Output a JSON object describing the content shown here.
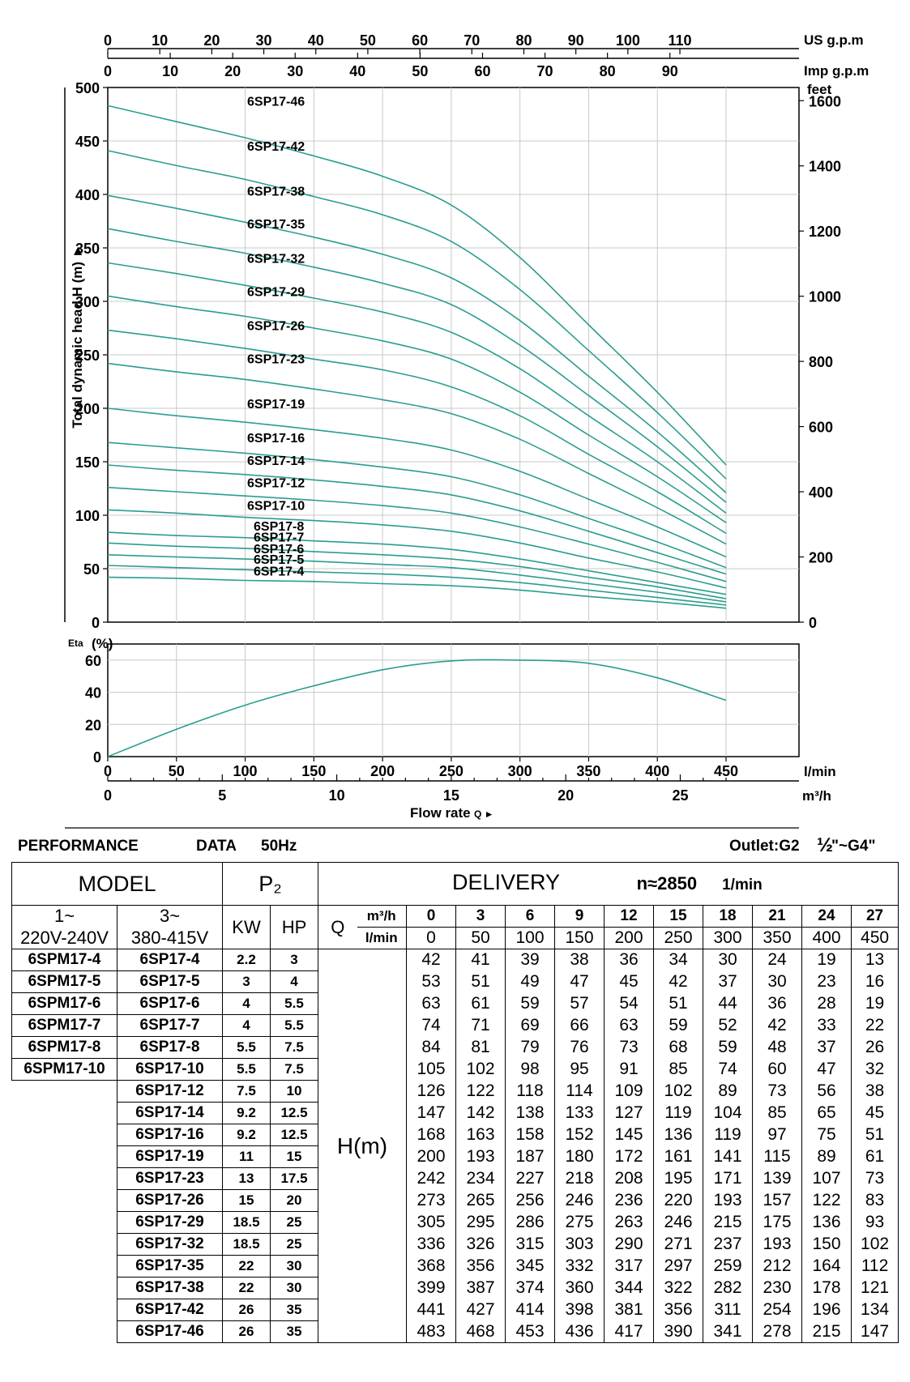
{
  "chart_data": [
    {
      "type": "line",
      "title": "",
      "ylabel": "Total dynamic head H (m)",
      "ylim": [
        0,
        500
      ],
      "yticks": [
        0,
        50,
        100,
        150,
        200,
        250,
        300,
        350,
        400,
        450,
        500
      ],
      "right_axis": {
        "label": "feet",
        "ticks": [
          0,
          200,
          400,
          600,
          800,
          1000,
          1200,
          1400,
          1600
        ]
      },
      "top_axis_us": {
        "label": "US g.p.m",
        "ticks": [
          0,
          10,
          20,
          30,
          40,
          50,
          60,
          70,
          80,
          90,
          100,
          110
        ]
      },
      "top_axis_imp": {
        "label": "Imp g.p.m",
        "ticks": [
          0,
          10,
          20,
          30,
          40,
          50,
          60,
          70,
          80,
          90
        ]
      },
      "x_lmin": [
        0,
        50,
        100,
        150,
        200,
        250,
        300,
        350,
        400,
        450
      ],
      "series": [
        {
          "name": "6SP17-46",
          "values": [
            483,
            468,
            453,
            436,
            417,
            390,
            341,
            278,
            215,
            147
          ]
        },
        {
          "name": "6SP17-42",
          "values": [
            441,
            427,
            414,
            398,
            381,
            356,
            311,
            254,
            196,
            134
          ]
        },
        {
          "name": "6SP17-38",
          "values": [
            399,
            387,
            374,
            360,
            344,
            322,
            282,
            230,
            178,
            121
          ]
        },
        {
          "name": "6SP17-35",
          "values": [
            368,
            356,
            345,
            332,
            317,
            297,
            259,
            212,
            164,
            112
          ]
        },
        {
          "name": "6SP17-32",
          "values": [
            336,
            326,
            315,
            303,
            290,
            271,
            237,
            193,
            150,
            102
          ]
        },
        {
          "name": "6SP17-29",
          "values": [
            305,
            295,
            286,
            275,
            263,
            246,
            215,
            175,
            136,
            93
          ]
        },
        {
          "name": "6SP17-26",
          "values": [
            273,
            265,
            256,
            246,
            236,
            220,
            193,
            157,
            122,
            83
          ]
        },
        {
          "name": "6SP17-23",
          "values": [
            242,
            234,
            227,
            218,
            208,
            195,
            171,
            139,
            107,
            73
          ]
        },
        {
          "name": "6SP17-19",
          "values": [
            200,
            193,
            187,
            180,
            172,
            161,
            141,
            115,
            89,
            61
          ]
        },
        {
          "name": "6SP17-16",
          "values": [
            168,
            163,
            158,
            152,
            145,
            136,
            119,
            97,
            75,
            51
          ]
        },
        {
          "name": "6SP17-14",
          "values": [
            147,
            142,
            138,
            133,
            127,
            119,
            104,
            85,
            65,
            45
          ]
        },
        {
          "name": "6SP17-12",
          "values": [
            126,
            122,
            118,
            114,
            109,
            102,
            89,
            73,
            56,
            38
          ]
        },
        {
          "name": "6SP17-10",
          "values": [
            105,
            102,
            98,
            95,
            91,
            85,
            74,
            60,
            47,
            32
          ]
        },
        {
          "name": "6SP17-8",
          "values": [
            84,
            81,
            79,
            76,
            73,
            68,
            59,
            48,
            37,
            26
          ]
        },
        {
          "name": "6SP17-7",
          "values": [
            74,
            71,
            69,
            66,
            63,
            59,
            52,
            42,
            33,
            22
          ]
        },
        {
          "name": "6SP17-6",
          "values": [
            63,
            61,
            59,
            57,
            54,
            51,
            44,
            36,
            28,
            19
          ]
        },
        {
          "name": "6SP17-5",
          "values": [
            53,
            51,
            49,
            47,
            45,
            42,
            37,
            30,
            23,
            16
          ]
        },
        {
          "name": "6SP17-4",
          "values": [
            42,
            41,
            39,
            38,
            36,
            34,
            30,
            24,
            19,
            13
          ]
        }
      ],
      "grid": true,
      "line_color": "#2a9d8f"
    },
    {
      "type": "line",
      "ylabel": "Eta (%)",
      "ylim": [
        0,
        70
      ],
      "yticks": [
        0,
        20,
        40,
        60
      ],
      "x_lmin": [
        0,
        50,
        100,
        150,
        200,
        250,
        300,
        350,
        400,
        450
      ],
      "xlabel_lmin": "l/min",
      "x_m3h": [
        0,
        5,
        10,
        15,
        20,
        25
      ],
      "xlabel_m3h": "m³/h",
      "xlabel": "Flow rate Q ►",
      "series": [
        {
          "name": "",
          "values": [
            0,
            17,
            32,
            44,
            54,
            59.5,
            60,
            58,
            49,
            35
          ]
        }
      ],
      "grid": true
    }
  ],
  "labels": {
    "us_gpm": "US g.p.m",
    "imp_gpm": "Imp g.p.m",
    "feet": "feet",
    "eta": "Eta",
    "eta_pct": "(%)",
    "ylabel": "Total dynamic head H (m) ►",
    "lmin": "l/min",
    "m3h": "m³/h",
    "flow_rate": "Flow rate",
    "flow_q": "Q ►"
  },
  "perf": {
    "title": "PERFORMANCE",
    "data": "DATA",
    "hz": "50Hz",
    "outlet": "Outlet:G2",
    "half": "½",
    "g4": "\"~G4\""
  },
  "table": {
    "model": "MODEL",
    "p2": "P₂",
    "delivery": "DELIVERY",
    "speed": "n≈2850",
    "rpm": "1/min",
    "phase1": "1~",
    "phase1_v": "220V-240V",
    "phase3": "3~",
    "phase3_v": "380-415V",
    "kw": "KW",
    "hp": "HP",
    "q": "Q",
    "m3h": "m³/h",
    "lmin": "l/min",
    "hm": "H(m)",
    "q_m3h": [
      "0",
      "3",
      "6",
      "9",
      "12",
      "15",
      "18",
      "21",
      "24",
      "27"
    ],
    "q_lmin": [
      "0",
      "50",
      "100",
      "150",
      "200",
      "250",
      "300",
      "350",
      "400",
      "450"
    ],
    "rows": [
      {
        "m1": "6SPM17-4",
        "m3": "6SP17-4",
        "kw": "2.2",
        "hp": "3",
        "h": [
          "42",
          "41",
          "39",
          "38",
          "36",
          "34",
          "30",
          "24",
          "19",
          "13"
        ]
      },
      {
        "m1": "6SPM17-5",
        "m3": "6SP17-5",
        "kw": "3",
        "hp": "4",
        "h": [
          "53",
          "51",
          "49",
          "47",
          "45",
          "42",
          "37",
          "30",
          "23",
          "16"
        ]
      },
      {
        "m1": "6SPM17-6",
        "m3": "6SP17-6",
        "kw": "4",
        "hp": "5.5",
        "h": [
          "63",
          "61",
          "59",
          "57",
          "54",
          "51",
          "44",
          "36",
          "28",
          "19"
        ]
      },
      {
        "m1": "6SPM17-7",
        "m3": "6SP17-7",
        "kw": "4",
        "hp": "5.5",
        "h": [
          "74",
          "71",
          "69",
          "66",
          "63",
          "59",
          "52",
          "42",
          "33",
          "22"
        ]
      },
      {
        "m1": "6SPM17-8",
        "m3": "6SP17-8",
        "kw": "5.5",
        "hp": "7.5",
        "h": [
          "84",
          "81",
          "79",
          "76",
          "73",
          "68",
          "59",
          "48",
          "37",
          "26"
        ]
      },
      {
        "m1": "6SPM17-10",
        "m3": "6SP17-10",
        "kw": "5.5",
        "hp": "7.5",
        "h": [
          "105",
          "102",
          "98",
          "95",
          "91",
          "85",
          "74",
          "60",
          "47",
          "32"
        ]
      },
      {
        "m1": "",
        "m3": "6SP17-12",
        "kw": "7.5",
        "hp": "10",
        "h": [
          "126",
          "122",
          "118",
          "114",
          "109",
          "102",
          "89",
          "73",
          "56",
          "38"
        ]
      },
      {
        "m1": "",
        "m3": "6SP17-14",
        "kw": "9.2",
        "hp": "12.5",
        "h": [
          "147",
          "142",
          "138",
          "133",
          "127",
          "119",
          "104",
          "85",
          "65",
          "45"
        ]
      },
      {
        "m1": "",
        "m3": "6SP17-16",
        "kw": "9.2",
        "hp": "12.5",
        "h": [
          "168",
          "163",
          "158",
          "152",
          "145",
          "136",
          "119",
          "97",
          "75",
          "51"
        ]
      },
      {
        "m1": "",
        "m3": "6SP17-19",
        "kw": "11",
        "hp": "15",
        "h": [
          "200",
          "193",
          "187",
          "180",
          "172",
          "161",
          "141",
          "115",
          "89",
          "61"
        ]
      },
      {
        "m1": "",
        "m3": "6SP17-23",
        "kw": "13",
        "hp": "17.5",
        "h": [
          "242",
          "234",
          "227",
          "218",
          "208",
          "195",
          "171",
          "139",
          "107",
          "73"
        ]
      },
      {
        "m1": "",
        "m3": "6SP17-26",
        "kw": "15",
        "hp": "20",
        "h": [
          "273",
          "265",
          "256",
          "246",
          "236",
          "220",
          "193",
          "157",
          "122",
          "83"
        ]
      },
      {
        "m1": "",
        "m3": "6SP17-29",
        "kw": "18.5",
        "hp": "25",
        "h": [
          "305",
          "295",
          "286",
          "275",
          "263",
          "246",
          "215",
          "175",
          "136",
          "93"
        ]
      },
      {
        "m1": "",
        "m3": "6SP17-32",
        "kw": "18.5",
        "hp": "25",
        "h": [
          "336",
          "326",
          "315",
          "303",
          "290",
          "271",
          "237",
          "193",
          "150",
          "102"
        ]
      },
      {
        "m1": "",
        "m3": "6SP17-35",
        "kw": "22",
        "hp": "30",
        "h": [
          "368",
          "356",
          "345",
          "332",
          "317",
          "297",
          "259",
          "212",
          "164",
          "112"
        ]
      },
      {
        "m1": "",
        "m3": "6SP17-38",
        "kw": "22",
        "hp": "30",
        "h": [
          "399",
          "387",
          "374",
          "360",
          "344",
          "322",
          "282",
          "230",
          "178",
          "121"
        ]
      },
      {
        "m1": "",
        "m3": "6SP17-42",
        "kw": "26",
        "hp": "35",
        "h": [
          "441",
          "427",
          "414",
          "398",
          "381",
          "356",
          "311",
          "254",
          "196",
          "134"
        ]
      },
      {
        "m1": "",
        "m3": "6SP17-46",
        "kw": "26",
        "hp": "35",
        "h": [
          "483",
          "468",
          "453",
          "436",
          "417",
          "390",
          "341",
          "278",
          "215",
          "147"
        ]
      }
    ]
  }
}
